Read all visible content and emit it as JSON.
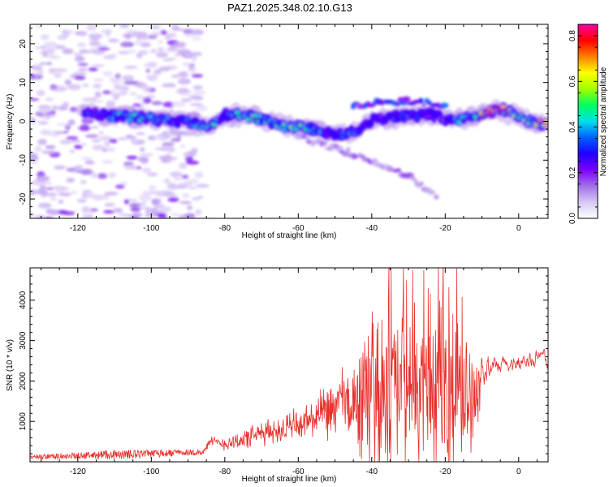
{
  "figure_title": "PAZ1.2025.348.02.10.G13",
  "chart_data": [
    {
      "type": "heatmap",
      "name": "spectrogram",
      "xlabel": "Height of straight line (km)",
      "ylabel": "Frequency (Hz)",
      "xlim": [
        -133,
        8
      ],
      "ylim": [
        -25,
        25
      ],
      "xticks": [
        -120,
        -100,
        -80,
        -60,
        -40,
        -20,
        0
      ],
      "yticks": [
        -20,
        -10,
        0,
        10,
        20
      ],
      "colorbar": {
        "label": "Normalized spectral amplitude",
        "range": [
          0,
          0.85
        ],
        "ticks": [
          "0.0",
          "0.2",
          "0.4",
          "0.6",
          "0.8"
        ],
        "colormap": [
          "#ffffff",
          "#d8c6f5",
          "#a070e8",
          "#7b00ff",
          "#2000ff",
          "#0060ff",
          "#00e0e8",
          "#00ff60",
          "#a0ff00",
          "#ffff00",
          "#ff8000",
          "#ff0000",
          "#ff00a0"
        ]
      },
      "ridge": {
        "x": [
          -118,
          -112,
          -106,
          -100,
          -96,
          -92,
          -88,
          -84,
          -80,
          -76,
          -72,
          -68,
          -64,
          -60,
          -56,
          -52,
          -48,
          -44,
          -40,
          -36,
          -32,
          -28,
          -24,
          -20,
          -16,
          -12,
          -8,
          -4,
          0,
          4,
          8
        ],
        "freq": [
          2,
          1.5,
          1,
          0.8,
          0.2,
          0,
          -0.5,
          -1,
          1.5,
          1.5,
          1,
          0,
          -1.5,
          -1.5,
          -2,
          -3,
          -3.5,
          -2.5,
          0.5,
          0.8,
          1.2,
          1.5,
          2,
          0.5,
          0.5,
          1,
          2.5,
          3,
          1,
          -0.5,
          -0.5
        ],
        "amplitude": [
          0.3,
          0.35,
          0.5,
          0.45,
          0.4,
          0.3,
          0.45,
          0.55,
          0.35,
          0.5,
          0.55,
          0.45,
          0.5,
          0.55,
          0.45,
          0.35,
          0.4,
          0.35,
          0.3,
          0.3,
          0.35,
          0.35,
          0.3,
          0.2,
          0.45,
          0.55,
          0.85,
          0.8,
          0.55,
          0.6,
          0.7
        ]
      },
      "secondary_branches": [
        {
          "x": [
            -60,
            -50,
            -40,
            -30,
            -22
          ],
          "freq": [
            -4,
            -7,
            -10,
            -14,
            -20
          ],
          "amplitude": 0.15
        },
        {
          "x": [
            -45,
            -35,
            -28,
            -20
          ],
          "freq": [
            4,
            5,
            5,
            4
          ],
          "amplitude": 0.3
        }
      ]
    },
    {
      "type": "line",
      "name": "snr",
      "xlabel": "Height of straight line (km)",
      "ylabel": "SNR (10 * v/v)",
      "xlim": [
        -133,
        8
      ],
      "ylim": [
        0,
        4800
      ],
      "xticks": [
        -120,
        -100,
        -80,
        -60,
        -40,
        -20,
        0
      ],
      "yticks": [
        1000,
        2000,
        3000,
        4000
      ],
      "color": "#e8302c",
      "envelope": {
        "x": [
          -133,
          -120,
          -110,
          -100,
          -90,
          -86,
          -84,
          -80,
          -75,
          -70,
          -65,
          -60,
          -55,
          -50,
          -48,
          -45,
          -42,
          -40,
          -38,
          -35,
          -32,
          -30,
          -28,
          -26,
          -24,
          -22,
          -20,
          -18,
          -16,
          -14,
          -12,
          -10,
          -8,
          -6,
          -4,
          -2,
          0,
          2,
          4,
          6,
          8
        ],
        "base": [
          120,
          150,
          180,
          200,
          230,
          240,
          500,
          450,
          550,
          700,
          800,
          900,
          1100,
          1300,
          1500,
          1400,
          1600,
          1700,
          1700,
          1800,
          1900,
          1900,
          1800,
          1800,
          1700,
          1700,
          1700,
          1700,
          1600,
          1700,
          1700,
          2200,
          2300,
          2300,
          2400,
          2400,
          2500,
          2500,
          2500,
          2600,
          2600
        ],
        "amp": [
          60,
          80,
          120,
          90,
          80,
          70,
          150,
          200,
          300,
          350,
          400,
          500,
          600,
          900,
          1000,
          1200,
          2000,
          2600,
          2400,
          2600,
          2800,
          2900,
          2600,
          2300,
          2000,
          2400,
          2600,
          2700,
          2000,
          1600,
          1400,
          800,
          700,
          600,
          500,
          500,
          500,
          500,
          500,
          500,
          500
        ]
      }
    }
  ]
}
